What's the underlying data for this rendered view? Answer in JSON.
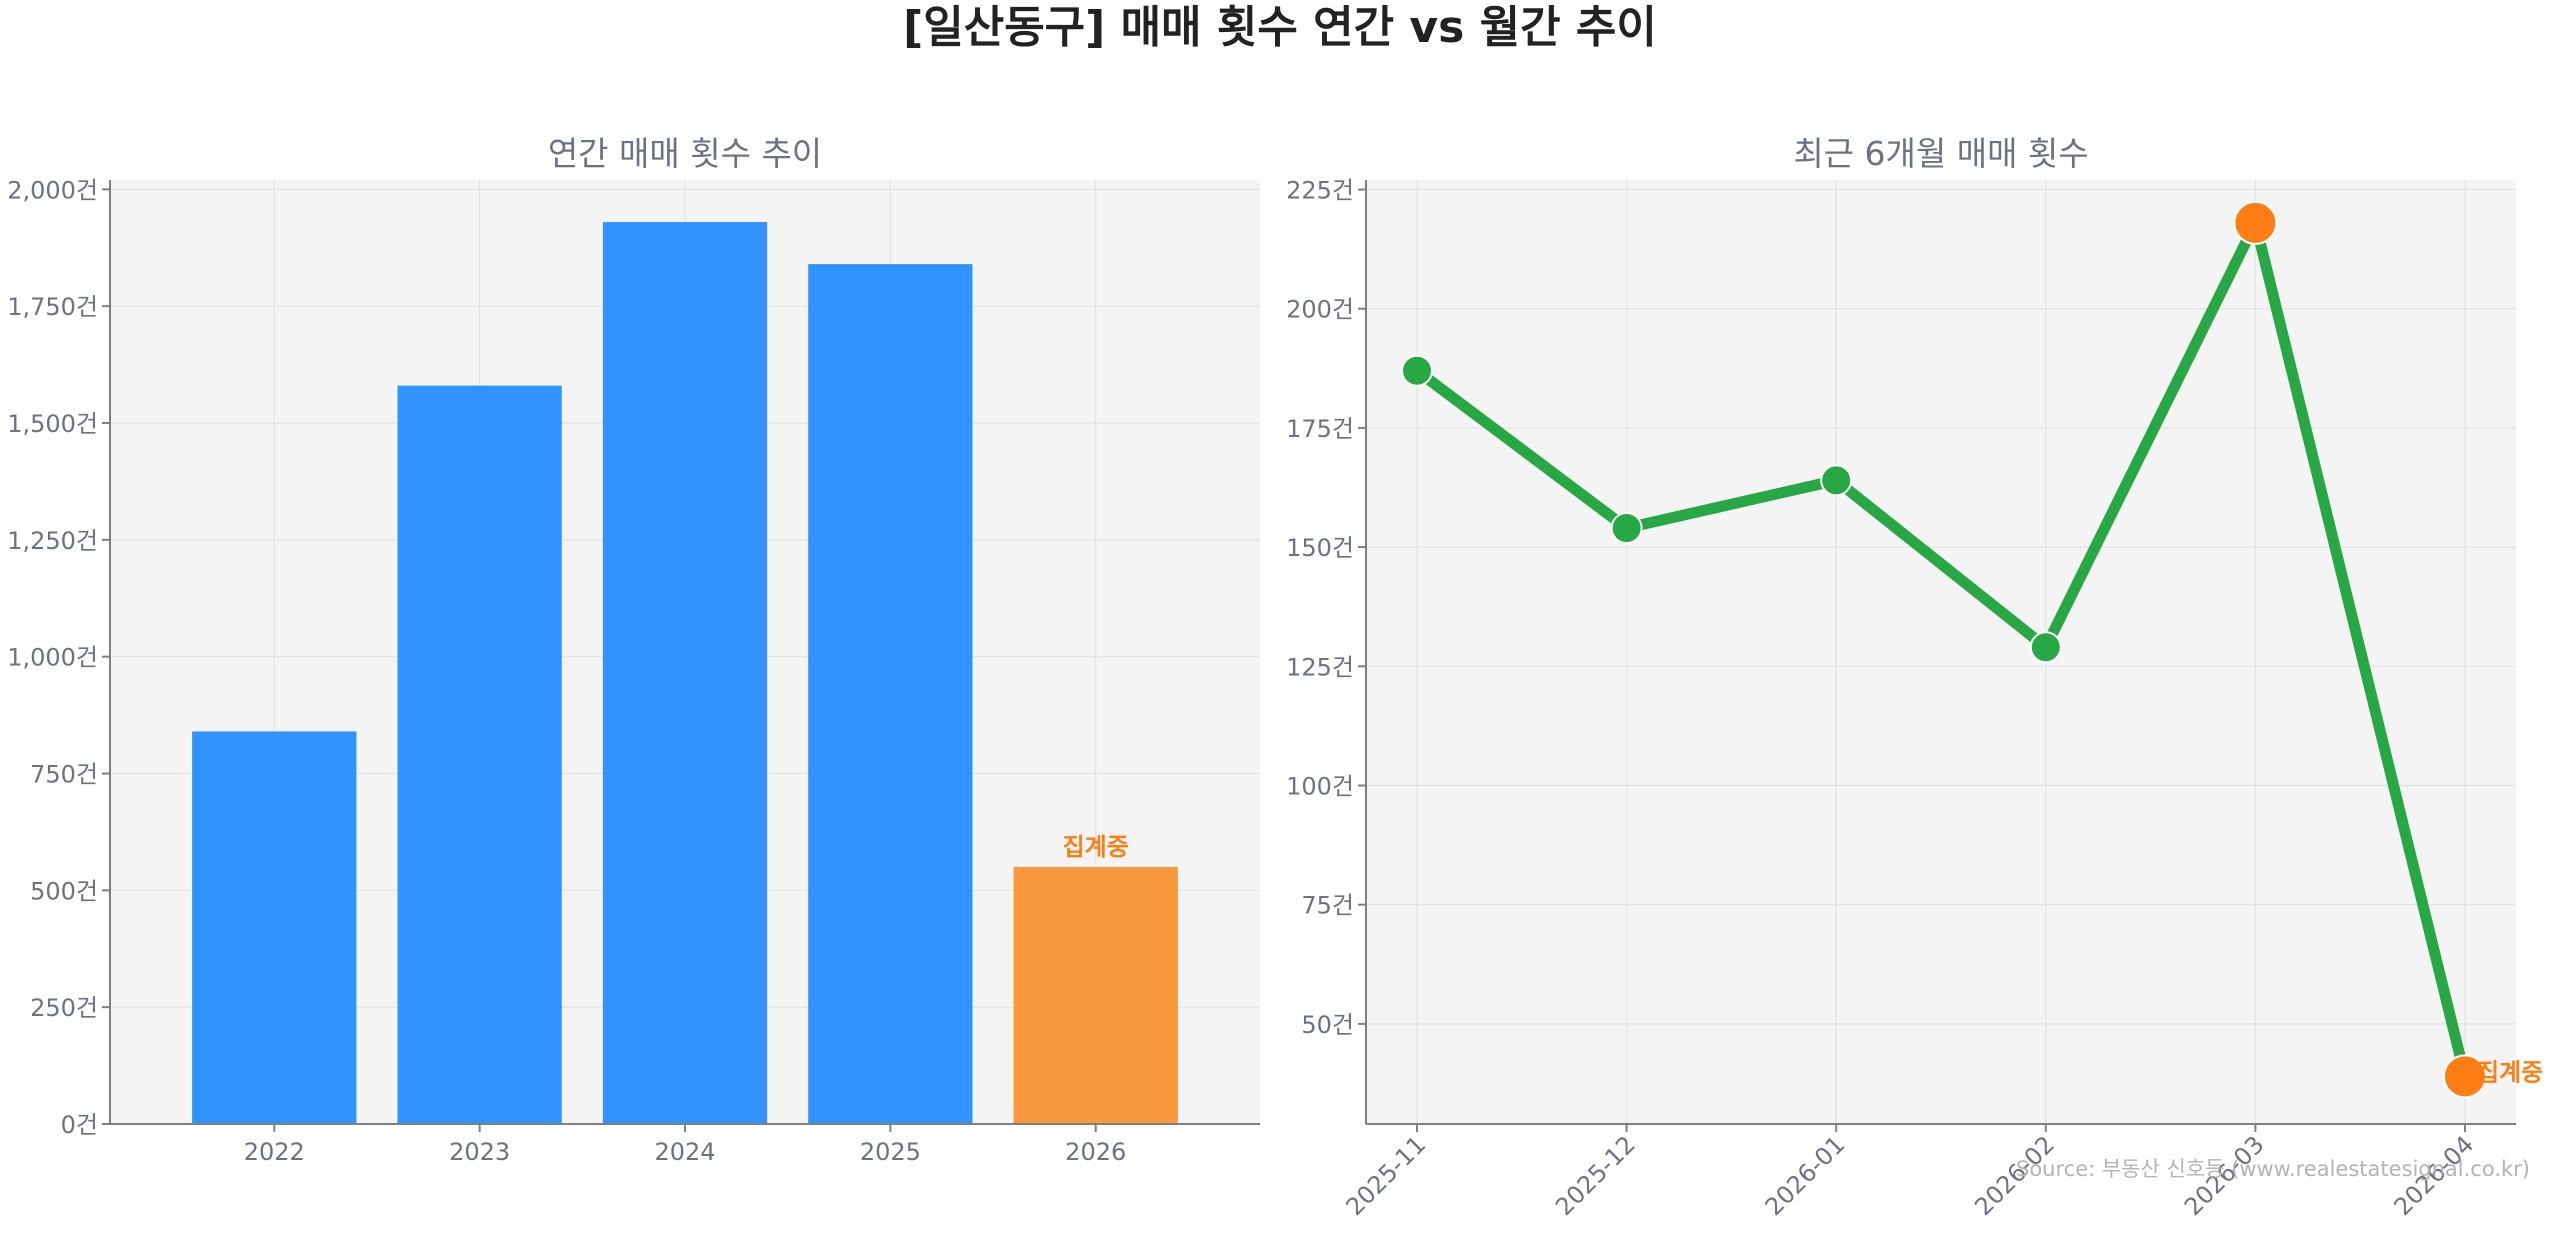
{
  "title": "[일산동구] 매매 횟수 연간 vs 월간 추이",
  "source": "Source: 부동산 신호등 (www.realestatesignal.co.kr)",
  "colors": {
    "bar": "#3193fc",
    "highlight": "#fa983e",
    "line": "#28a745",
    "marker_highlight": "#fd7e14",
    "annotation": "#fd7e14"
  },
  "chart_data": [
    {
      "type": "bar",
      "title": "연간 매매 횟수 추이",
      "xlabel": "",
      "ylabel": "",
      "categories": [
        "2022",
        "2023",
        "2024",
        "2025",
        "2026"
      ],
      "values": [
        840,
        1580,
        1930,
        1840,
        550
      ],
      "highlight_index": 4,
      "annotation": "집계중",
      "ylim": [
        0,
        2020
      ],
      "yticks": [
        0,
        250,
        500,
        750,
        1000,
        1250,
        1500,
        1750,
        2000
      ],
      "ytick_labels": [
        "0건",
        "250건",
        "500건",
        "750건",
        "1,000건",
        "1,250건",
        "1,500건",
        "1,750건",
        "2,000건"
      ],
      "grid": true
    },
    {
      "type": "line",
      "title": "최근 6개월 매매 횟수",
      "xlabel": "",
      "ylabel": "",
      "categories": [
        "2025-11",
        "2025-12",
        "2026-01",
        "2026-02",
        "2026-03",
        "2026-04"
      ],
      "values": [
        187,
        154,
        164,
        129,
        218,
        39
      ],
      "highlight_indices": [
        4,
        5
      ],
      "annotation": "집계중",
      "ylim": [
        29,
        227
      ],
      "yticks": [
        50,
        75,
        100,
        125,
        150,
        175,
        200,
        225
      ],
      "ytick_labels": [
        "50건",
        "75건",
        "100건",
        "125건",
        "150건",
        "175건",
        "200건",
        "225건"
      ],
      "grid": true
    }
  ]
}
